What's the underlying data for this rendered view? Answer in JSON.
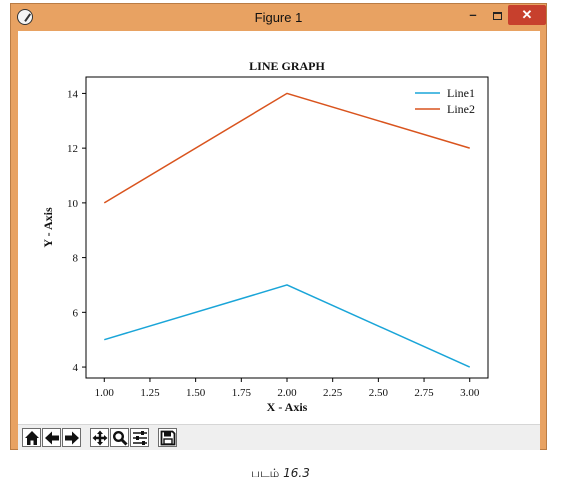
{
  "window": {
    "title": "Figure 1",
    "minimize_label": "–",
    "close_label": "✕",
    "frame_color": "#e8a262",
    "close_color": "#c7402d"
  },
  "toolbar": {
    "buttons": [
      "home-icon",
      "back-arrow-icon",
      "forward-arrow-icon",
      "pan-icon",
      "zoom-icon",
      "configure-subplots-icon",
      "save-icon"
    ]
  },
  "chart_data": {
    "type": "line",
    "title": "LINE GRAPH",
    "xlabel": "X - Axis",
    "ylabel": "Y - Axis",
    "x": [
      1,
      2,
      3
    ],
    "series": [
      {
        "name": "Line1",
        "values": [
          5,
          7,
          4
        ],
        "color": "#1aa5d8"
      },
      {
        "name": "Line2",
        "values": [
          10,
          14,
          12
        ],
        "color": "#d9541e"
      }
    ],
    "xlim": [
      0.9,
      3.1
    ],
    "ylim": [
      3.6,
      14.6
    ],
    "xticks": [
      "1.00",
      "1.25",
      "1.50",
      "1.75",
      "2.00",
      "2.25",
      "2.50",
      "2.75",
      "3.00"
    ],
    "yticks": [
      "4",
      "6",
      "8",
      "10",
      "12",
      "14"
    ],
    "grid": false,
    "legend": "top-right"
  },
  "caption": {
    "prefix": "படம்",
    "number": "16.3"
  }
}
